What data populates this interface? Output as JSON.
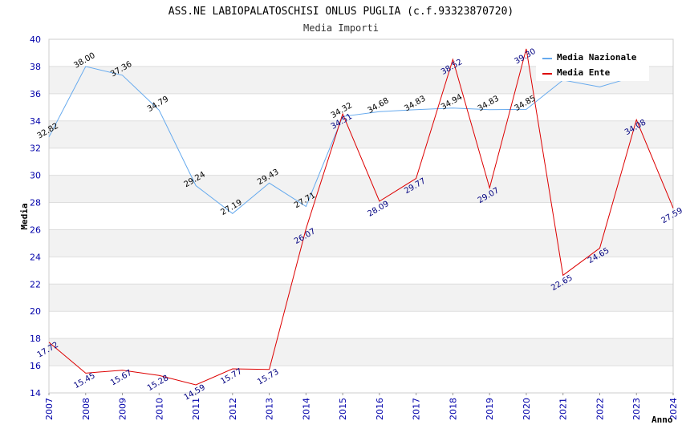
{
  "chart_data": {
    "type": "line",
    "title": "ASS.NE LABIOPALATOSCHISI ONLUS PUGLIA (c.f.93323870720)",
    "subtitle": "Media Importi",
    "xlabel": "Anno",
    "ylabel": "Media",
    "ylim": [
      14,
      40
    ],
    "yticks": [
      "14",
      "16",
      "18",
      "20",
      "22",
      "24",
      "26",
      "28",
      "30",
      "32",
      "34",
      "36",
      "38",
      "40"
    ],
    "categories": [
      "2007",
      "2008",
      "2009",
      "2010",
      "2011",
      "2012",
      "2013",
      "2014",
      "2015",
      "2016",
      "2017",
      "2018",
      "2019",
      "2020",
      "2021",
      "2022",
      "2023",
      "2024"
    ],
    "legend_position": "top-right",
    "series": [
      {
        "name": "Media Nazionale",
        "color": "#66aaee",
        "values": [
          32.82,
          38.0,
          37.36,
          34.79,
          29.24,
          27.19,
          29.43,
          27.71,
          34.32,
          34.68,
          34.83,
          34.94,
          34.83,
          34.85,
          37.0,
          36.5,
          37.3,
          null
        ],
        "labels": [
          "32.82",
          "38.00",
          "37.36",
          "34.79",
          "29.24",
          "27.19",
          "29.43",
          "27.71",
          "34.32",
          "34.68",
          "34.83",
          "34.94",
          "34.83",
          "34.85",
          "",
          "",
          "",
          ""
        ]
      },
      {
        "name": "Media Ente",
        "color": "#dd0000",
        "values": [
          17.72,
          15.45,
          15.67,
          15.28,
          14.59,
          15.77,
          15.73,
          26.07,
          34.51,
          28.09,
          29.77,
          38.52,
          29.07,
          39.3,
          22.65,
          24.65,
          34.08,
          27.59
        ],
        "labels": [
          "17.72",
          "15.45",
          "15.67",
          "15.28",
          "14.59",
          "15.77",
          "15.73",
          "26.07",
          "34.51",
          "28.09",
          "29.77",
          "38.52",
          "29.07",
          "39.30",
          "22.65",
          "24.65",
          "34.08",
          "27.59"
        ]
      }
    ]
  }
}
